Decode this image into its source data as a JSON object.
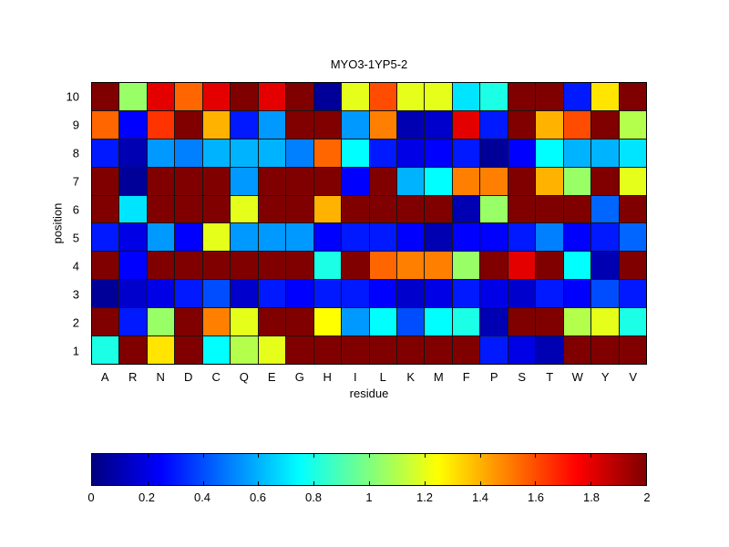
{
  "title": "MYO3-1YP5-2",
  "chart_data": {
    "type": "heatmap",
    "title": "MYO3-1YP5-2",
    "xlabel": "residue",
    "ylabel": "position",
    "x_categories": [
      "A",
      "R",
      "N",
      "D",
      "C",
      "Q",
      "E",
      "G",
      "H",
      "I",
      "L",
      "K",
      "M",
      "F",
      "P",
      "S",
      "T",
      "W",
      "Y",
      "V"
    ],
    "y_categories": [
      "10",
      "9",
      "8",
      "7",
      "6",
      "5",
      "4",
      "3",
      "2",
      "1"
    ],
    "vmin": 0,
    "vmax": 2,
    "colormap": "jet",
    "grid": "cell-borders",
    "colorbar_position": "bottom-horizontal",
    "colorbar_tick_labels": [
      "0",
      "0.2",
      "0.4",
      "0.6",
      "0.8",
      "1",
      "1.2",
      "1.4",
      "1.6",
      "1.8",
      "2"
    ],
    "colorbar_tick_values": [
      0,
      0.2,
      0.4,
      0.6,
      0.8,
      1,
      1.2,
      1.4,
      1.6,
      1.8,
      2
    ],
    "values": [
      [
        2.0,
        1.05,
        1.8,
        1.55,
        1.8,
        2.0,
        1.8,
        2.0,
        0.05,
        1.2,
        1.6,
        1.2,
        1.2,
        0.7,
        0.8,
        2.0,
        2.0,
        0.3,
        1.3,
        2.0
      ],
      [
        1.55,
        0.25,
        1.65,
        2.0,
        1.4,
        0.3,
        0.55,
        2.0,
        2.0,
        0.55,
        1.5,
        0.1,
        0.15,
        1.8,
        0.3,
        2.0,
        1.4,
        1.6,
        2.0,
        1.1
      ],
      [
        0.3,
        0.1,
        0.55,
        0.5,
        0.6,
        0.6,
        0.6,
        0.5,
        1.55,
        0.75,
        0.3,
        0.2,
        0.25,
        0.3,
        0.05,
        0.25,
        0.75,
        0.6,
        0.6,
        0.7
      ],
      [
        2.0,
        0.05,
        2.0,
        2.0,
        2.0,
        0.55,
        2.0,
        2.0,
        2.0,
        0.25,
        2.0,
        0.6,
        0.75,
        1.5,
        1.5,
        2.0,
        1.4,
        1.05,
        2.0,
        1.2
      ],
      [
        2.0,
        0.7,
        2.0,
        2.0,
        2.0,
        1.2,
        2.0,
        2.0,
        1.4,
        2.0,
        2.0,
        2.0,
        2.0,
        0.1,
        1.05,
        2.0,
        2.0,
        2.0,
        0.45,
        2.0
      ],
      [
        0.3,
        0.2,
        0.55,
        0.25,
        1.2,
        0.55,
        0.55,
        0.55,
        0.25,
        0.3,
        0.3,
        0.25,
        0.1,
        0.25,
        0.25,
        0.3,
        0.5,
        0.25,
        0.3,
        0.45
      ],
      [
        2.0,
        0.25,
        2.0,
        2.0,
        2.0,
        2.0,
        2.0,
        2.0,
        0.8,
        2.0,
        1.55,
        1.5,
        1.5,
        1.05,
        2.0,
        1.8,
        2.0,
        0.75,
        0.1,
        2.0
      ],
      [
        0.05,
        0.15,
        0.2,
        0.3,
        0.4,
        0.15,
        0.3,
        0.25,
        0.3,
        0.3,
        0.25,
        0.15,
        0.2,
        0.3,
        0.2,
        0.15,
        0.3,
        0.25,
        0.4,
        0.3
      ],
      [
        2.0,
        0.3,
        1.05,
        2.0,
        1.5,
        1.2,
        2.0,
        2.0,
        1.25,
        0.55,
        0.75,
        0.4,
        0.75,
        0.8,
        0.1,
        2.0,
        2.0,
        1.1,
        1.2,
        0.8
      ],
      [
        0.8,
        2.0,
        1.3,
        2.0,
        0.75,
        1.1,
        1.2,
        2.0,
        2.0,
        2.0,
        2.0,
        2.0,
        2.0,
        2.0,
        0.3,
        0.2,
        0.1,
        2.0,
        2.0,
        2.0
      ]
    ]
  }
}
